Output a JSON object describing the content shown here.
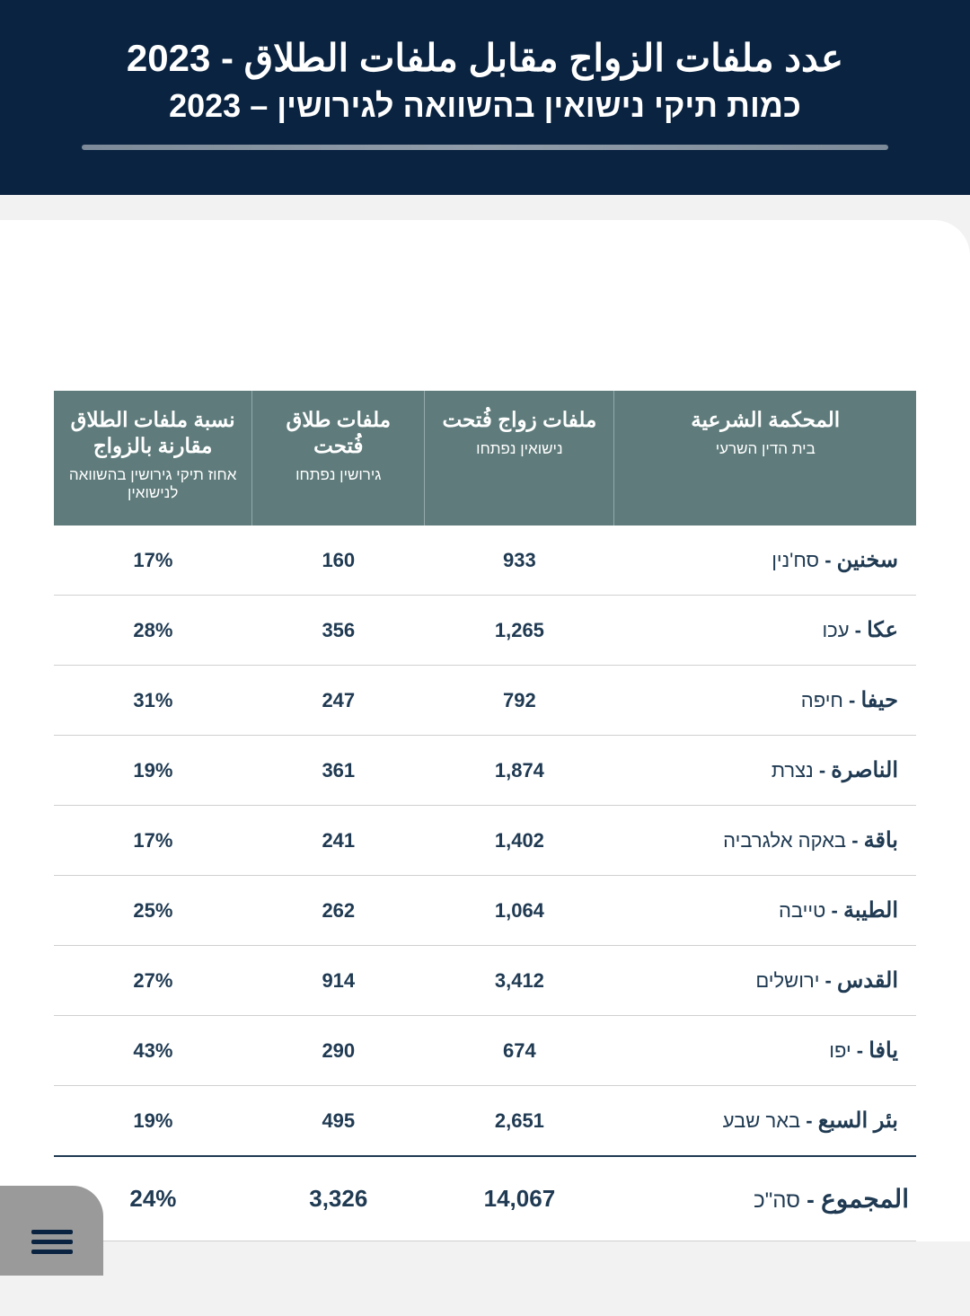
{
  "colors": {
    "header_bg": "#0a2340",
    "th_bg": "#5f7b7b",
    "text_primary": "#1f3a52",
    "row_border": "#d0d0d0",
    "page_bg": "#f2f2f2",
    "inner_bg": "#ffffff",
    "menu_bg": "#9a9a9a"
  },
  "header": {
    "title_ar": "عدد ملفات الزواج مقابل ملفات الطلاق - 2023",
    "title_he": "כמות תיקי נישואין בהשוואה לגירושין – 2023"
  },
  "table": {
    "columns": [
      {
        "main": "نسبة ملفات الطلاق مقارنة بالزواج",
        "sub": "אחוז תיקי גירושין בהשוואה לנישואין"
      },
      {
        "main": "ملفات طلاق فُتحت",
        "sub": "גירושין נפתחו"
      },
      {
        "main": "ملفات زواج فُتحت",
        "sub": "נישואין נפתחו"
      },
      {
        "main": "المحكمة الشرعية",
        "sub": "בית הדין השרעי"
      }
    ],
    "rows": [
      {
        "pct": "17%",
        "divorce": "160",
        "marriage": "933",
        "ar": "سخنين",
        "he": "סח'נין"
      },
      {
        "pct": "28%",
        "divorce": "356",
        "marriage": "1,265",
        "ar": "عكا",
        "he": "עכו"
      },
      {
        "pct": "31%",
        "divorce": "247",
        "marriage": "792",
        "ar": "حيفا",
        "he": "חיפה"
      },
      {
        "pct": "19%",
        "divorce": "361",
        "marriage": "1,874",
        "ar": "الناصرة",
        "he": "נצרת"
      },
      {
        "pct": "17%",
        "divorce": "241",
        "marriage": "1,402",
        "ar": "باقة",
        "he": "באקה אלגרביה"
      },
      {
        "pct": "25%",
        "divorce": "262",
        "marriage": "1,064",
        "ar": "الطيبة",
        "he": "טייבה"
      },
      {
        "pct": "27%",
        "divorce": "914",
        "marriage": "3,412",
        "ar": "القدس",
        "he": "ירושלים"
      },
      {
        "pct": "43%",
        "divorce": "290",
        "marriage": "674",
        "ar": "يافا",
        "he": "יפו"
      },
      {
        "pct": "19%",
        "divorce": "495",
        "marriage": "2,651",
        "ar": "بئر السبع",
        "he": "באר שבע"
      }
    ],
    "total": {
      "pct": "24%",
      "divorce": "3,326",
      "marriage": "14,067",
      "ar": "المجموع",
      "he": "סה\"כ"
    }
  }
}
